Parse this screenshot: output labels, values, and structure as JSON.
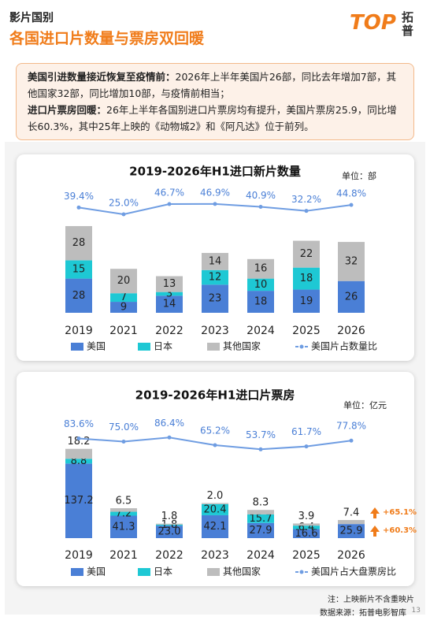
{
  "header": {
    "section": "影片国别",
    "title": "各国进口片数量与票房双回暖",
    "logo_mark": "TOP",
    "logo_name": "拓普"
  },
  "summary": [
    {
      "lead": "美国引进数量接近恢复至疫情前：",
      "text": "2026年上半年美国片26部，同比去年增加7部，其他国家32部，同比增加10部，与疫情前相当；"
    },
    {
      "lead": "进口片票房回暖：",
      "text": "26年上半年各国别进口片票房均有提升，美国片票房25.9，同比增长60.3%，其中25年上映的《动物城2》和《阿凡达》位于前列。"
    }
  ],
  "chart_data": [
    {
      "type": "bar",
      "stacked": true,
      "title": "2019-2026年H1进口新片数量",
      "unit": "单位：部",
      "categories": [
        "2019",
        "2021",
        "2022",
        "2023",
        "2024",
        "2025",
        "2026"
      ],
      "series": [
        {
          "name": "美国",
          "color": "#4a7fd6",
          "values": [
            28,
            9,
            14,
            23,
            18,
            19,
            26
          ]
        },
        {
          "name": "日本",
          "color": "#1ec8d4",
          "values": [
            15,
            7,
            3,
            12,
            10,
            18,
            null
          ]
        },
        {
          "name": "其他国家",
          "color": "#bdbdbd",
          "values": [
            28,
            20,
            13,
            14,
            16,
            22,
            32
          ]
        },
        {
          "name": "美国片占数量比",
          "type": "line",
          "color": "#6f9de2",
          "values": [
            39.4,
            25.0,
            46.7,
            46.9,
            40.9,
            32.2,
            44.8
          ],
          "value_labels": [
            "39.4%",
            "25.0%",
            "46.7%",
            "46.9%",
            "40.9%",
            "32.2%",
            "44.8%"
          ]
        }
      ]
    },
    {
      "type": "bar",
      "stacked": true,
      "title": "2019-2026年H1进口片票房",
      "unit": "单位：亿元",
      "categories": [
        "2019",
        "2021",
        "2022",
        "2023",
        "2024",
        "2025",
        "2026"
      ],
      "series": [
        {
          "name": "美国",
          "color": "#4a7fd6",
          "values": [
            137.2,
            41.3,
            23.0,
            42.1,
            27.9,
            16.6,
            25.9
          ],
          "value_labels": [
            "137.2",
            "41.3",
            "23.0",
            "42.1",
            "27.9",
            "16.6",
            "25.9"
          ]
        },
        {
          "name": "日本",
          "color": "#1ec8d4",
          "values": [
            8.8,
            7.2,
            1.8,
            20.4,
            15.7,
            6.4,
            null
          ]
        },
        {
          "name": "其他国家",
          "color": "#bdbdbd",
          "values": [
            18.2,
            6.5,
            1.8,
            2.0,
            8.3,
            3.9,
            7.4
          ],
          "value_labels": [
            "18.2",
            "6.5",
            "1.8",
            "2.0",
            "8.3",
            "3.9",
            "7.4"
          ]
        },
        {
          "name": "美国片占大盘票房比",
          "type": "line",
          "color": "#6f9de2",
          "values": [
            83.6,
            75.0,
            86.4,
            65.2,
            53.7,
            61.7,
            77.8
          ],
          "value_labels": [
            "83.6%",
            "75.0%",
            "86.4%",
            "65.2%",
            "53.7%",
            "61.7%",
            "77.8%"
          ]
        }
      ],
      "annotations": [
        "+65.1%",
        "+60.3%"
      ]
    }
  ],
  "footer": {
    "note": "注：上映新片不含重映片",
    "source": "数据来源：拓普电影智库",
    "page": "13"
  }
}
